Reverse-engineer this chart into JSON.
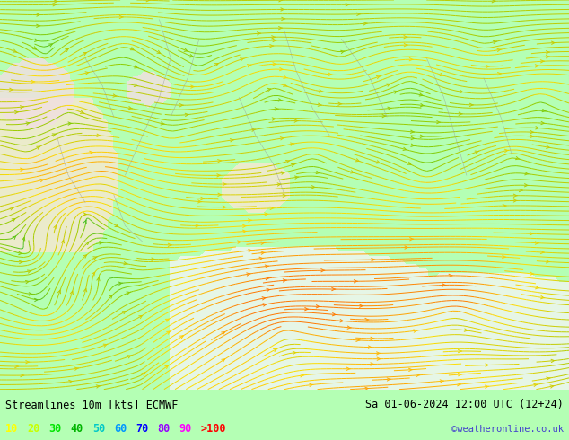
{
  "title_left": "Streamlines 10m [kts] ECMWF",
  "title_right": "Sa 01-06-2024 12:00 UTC (12+24)",
  "watermark": "©weatheronline.co.uk",
  "legend_values": [
    "10",
    "20",
    "30",
    "40",
    "50",
    "60",
    "70",
    "80",
    "90",
    ">100"
  ],
  "legend_colors": [
    "#ffff00",
    "#c8ff00",
    "#00e400",
    "#00b400",
    "#00c8c8",
    "#0096ff",
    "#0000ff",
    "#9600ff",
    "#ff00ff",
    "#ff0000"
  ],
  "bg_color": "#b4ffb4",
  "map_bg": "#b4ffb4",
  "bottom_bar_color": "#c8c8c8",
  "fig_width": 6.34,
  "fig_height": 4.9,
  "dpi": 100,
  "stream_colors": [
    "#228822",
    "#66aa00",
    "#aacc00",
    "#ffff00",
    "#ffaa00",
    "#ff6600"
  ],
  "ocean_color": "#e8ffe8",
  "land_color": "#c8ffc8",
  "white_region_color": "#f0f5f0",
  "tan_region_color": "#f5e8d0",
  "pink_region_color": "#f0e0e0"
}
